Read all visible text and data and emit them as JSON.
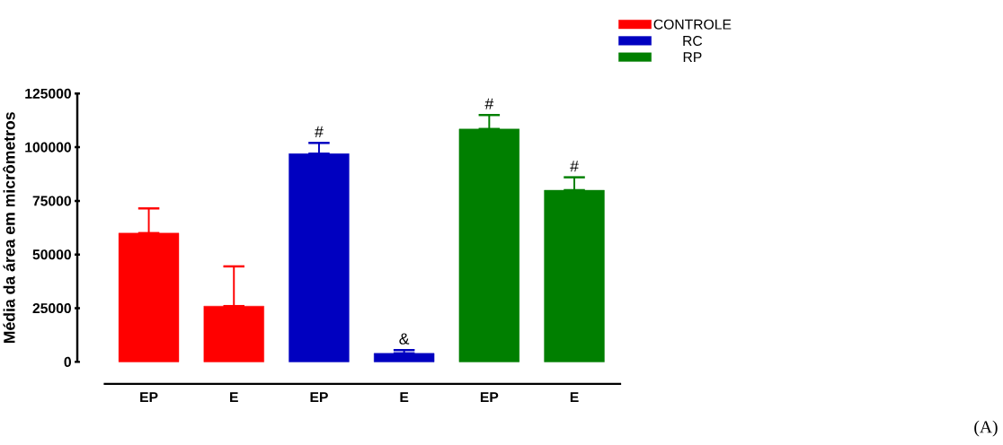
{
  "chart_data": {
    "type": "bar",
    "ylabel": "Média da área em micrômetros",
    "categories": [
      "EP",
      "E",
      "EP",
      "E",
      "EP",
      "E"
    ],
    "series": [
      {
        "name": "CONTROLE",
        "color": "#ff0000",
        "values": [
          60000,
          26000,
          null,
          null,
          null,
          null
        ],
        "errors": [
          [
            60000,
            71500
          ],
          [
            26000,
            44500
          ],
          null,
          null,
          null,
          null
        ]
      },
      {
        "name": "RC",
        "color": "#0000c0",
        "values": [
          null,
          null,
          97000,
          4000,
          null,
          null
        ],
        "errors": [
          null,
          null,
          [
            97000,
            102000
          ],
          [
            4000,
            5500
          ],
          null,
          null
        ],
        "value_labels": [
          null,
          null,
          "#",
          "&",
          null,
          null
        ]
      },
      {
        "name": "RP",
        "color": "#007f00",
        "values": [
          null,
          null,
          null,
          null,
          108500,
          80000
        ],
        "errors": [
          null,
          null,
          null,
          null,
          [
            108500,
            115000
          ],
          [
            80000,
            86000
          ]
        ],
        "value_labels": [
          null,
          null,
          null,
          null,
          "#",
          "#"
        ]
      }
    ],
    "ylim": [
      0,
      125000
    ],
    "yticks": [
      0,
      25000,
      50000,
      75000,
      100000,
      125000
    ],
    "grid": false,
    "legend": "top right",
    "annotations": [
      "(A)"
    ]
  }
}
